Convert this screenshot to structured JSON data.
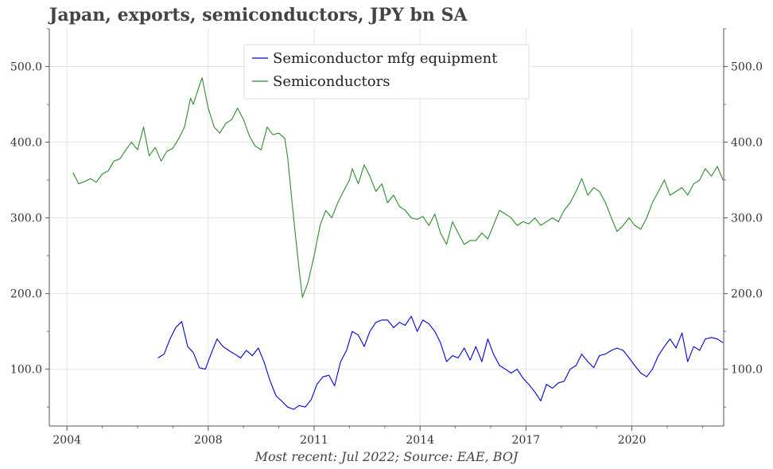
{
  "title": "Japan, exports, semiconductors, JPY bn SA",
  "footer": "Most recent: Jul 2022; Source: EAE, BOJ",
  "chart_data": {
    "type": "line",
    "title": "Japan, exports, semiconductors, JPY bn SA",
    "xlabel": "",
    "ylabel": "",
    "xlim": [
      2003.5,
      2022.6
    ],
    "ylim": [
      25,
      550
    ],
    "grid": true,
    "legend_position": "top-center",
    "x_ticks": [
      2004,
      2008,
      2011,
      2014,
      2017,
      2020
    ],
    "x_tick_labels": [
      "2004",
      "2008",
      "2011",
      "2014",
      "2017",
      "2020"
    ],
    "y_ticks": [
      100,
      200,
      300,
      400,
      500
    ],
    "y_tick_labels": [
      "100.0",
      "200.0",
      "300.0",
      "400.0",
      "500.0"
    ],
    "series": [
      {
        "name": "Semiconductor mfg equipment",
        "color": "#0000dd",
        "points": [
          [
            2006.58,
            115
          ],
          [
            2006.75,
            120
          ],
          [
            2006.92,
            140
          ],
          [
            2007.08,
            155
          ],
          [
            2007.25,
            163
          ],
          [
            2007.42,
            130
          ],
          [
            2007.58,
            122
          ],
          [
            2007.75,
            102
          ],
          [
            2007.92,
            100
          ],
          [
            2008.08,
            120
          ],
          [
            2008.25,
            140
          ],
          [
            2008.42,
            130
          ],
          [
            2008.58,
            125
          ],
          [
            2008.75,
            120
          ],
          [
            2008.92,
            115
          ],
          [
            2009.08,
            125
          ],
          [
            2009.25,
            118
          ],
          [
            2009.42,
            128
          ],
          [
            2009.58,
            110
          ],
          [
            2009.75,
            85
          ],
          [
            2009.92,
            65
          ],
          [
            2010.08,
            58
          ],
          [
            2010.25,
            50
          ],
          [
            2010.42,
            47
          ],
          [
            2010.58,
            52
          ],
          [
            2010.75,
            50
          ],
          [
            2010.92,
            60
          ],
          [
            2011.08,
            80
          ],
          [
            2011.25,
            90
          ],
          [
            2011.42,
            92
          ],
          [
            2011.58,
            78
          ],
          [
            2011.75,
            110
          ],
          [
            2011.92,
            125
          ],
          [
            2012.08,
            150
          ],
          [
            2012.25,
            145
          ],
          [
            2012.42,
            130
          ],
          [
            2012.58,
            150
          ],
          [
            2012.75,
            162
          ],
          [
            2012.92,
            165
          ],
          [
            2013.08,
            165
          ],
          [
            2013.25,
            155
          ],
          [
            2013.42,
            162
          ],
          [
            2013.58,
            158
          ],
          [
            2013.75,
            170
          ],
          [
            2013.92,
            150
          ],
          [
            2014.08,
            165
          ],
          [
            2014.25,
            160
          ],
          [
            2014.42,
            150
          ],
          [
            2014.58,
            135
          ],
          [
            2014.75,
            110
          ],
          [
            2014.92,
            118
          ],
          [
            2015.08,
            115
          ],
          [
            2015.25,
            128
          ],
          [
            2015.42,
            112
          ],
          [
            2015.58,
            130
          ],
          [
            2015.75,
            110
          ],
          [
            2015.92,
            140
          ],
          [
            2016.08,
            120
          ],
          [
            2016.25,
            105
          ],
          [
            2016.42,
            100
          ],
          [
            2016.58,
            95
          ],
          [
            2016.75,
            100
          ],
          [
            2016.92,
            88
          ],
          [
            2017.08,
            80
          ],
          [
            2017.25,
            70
          ],
          [
            2017.42,
            58
          ],
          [
            2017.58,
            80
          ],
          [
            2017.75,
            75
          ],
          [
            2017.92,
            82
          ],
          [
            2018.08,
            84
          ],
          [
            2018.25,
            100
          ],
          [
            2018.42,
            105
          ],
          [
            2018.58,
            120
          ],
          [
            2018.75,
            110
          ],
          [
            2018.92,
            102
          ],
          [
            2019.08,
            118
          ],
          [
            2019.25,
            120
          ],
          [
            2019.42,
            125
          ],
          [
            2019.58,
            128
          ],
          [
            2019.75,
            125
          ],
          [
            2019.92,
            115
          ],
          [
            2020.08,
            105
          ],
          [
            2020.25,
            95
          ],
          [
            2020.42,
            90
          ],
          [
            2020.58,
            100
          ],
          [
            2020.75,
            118
          ],
          [
            2020.92,
            130
          ],
          [
            2021.08,
            140
          ],
          [
            2021.25,
            128
          ],
          [
            2021.42,
            148
          ],
          [
            2021.58,
            110
          ],
          [
            2021.75,
            130
          ],
          [
            2021.92,
            125
          ],
          [
            2022.08,
            140
          ],
          [
            2022.25,
            142
          ],
          [
            2022.42,
            140
          ],
          [
            2022.58,
            135
          ]
        ]
      },
      {
        "name": "Semiconductors",
        "color": "#2e8b2e",
        "points": [
          [
            2004.17,
            360
          ],
          [
            2004.33,
            345
          ],
          [
            2004.5,
            348
          ],
          [
            2004.67,
            352
          ],
          [
            2004.83,
            347
          ],
          [
            2005.0,
            358
          ],
          [
            2005.17,
            362
          ],
          [
            2005.33,
            375
          ],
          [
            2005.5,
            378
          ],
          [
            2005.67,
            390
          ],
          [
            2005.83,
            400
          ],
          [
            2006.0,
            390
          ],
          [
            2006.17,
            420
          ],
          [
            2006.33,
            382
          ],
          [
            2006.5,
            393
          ],
          [
            2006.67,
            375
          ],
          [
            2006.83,
            388
          ],
          [
            2007.0,
            392
          ],
          [
            2007.17,
            405
          ],
          [
            2007.33,
            420
          ],
          [
            2007.5,
            458
          ],
          [
            2007.58,
            450
          ],
          [
            2007.75,
            475
          ],
          [
            2007.83,
            485
          ],
          [
            2008.0,
            445
          ],
          [
            2008.17,
            420
          ],
          [
            2008.33,
            412
          ],
          [
            2008.5,
            425
          ],
          [
            2008.67,
            430
          ],
          [
            2008.83,
            445
          ],
          [
            2009.0,
            430
          ],
          [
            2009.17,
            408
          ],
          [
            2009.33,
            395
          ],
          [
            2009.5,
            390
          ],
          [
            2009.67,
            420
          ],
          [
            2009.83,
            410
          ],
          [
            2010.0,
            412
          ],
          [
            2010.17,
            405
          ],
          [
            2010.25,
            380
          ],
          [
            2010.42,
            300
          ],
          [
            2010.58,
            230
          ],
          [
            2010.67,
            195
          ],
          [
            2010.83,
            215
          ],
          [
            2011.0,
            250
          ],
          [
            2011.17,
            290
          ],
          [
            2011.33,
            310
          ],
          [
            2011.5,
            300
          ],
          [
            2011.67,
            320
          ],
          [
            2011.83,
            335
          ],
          [
            2012.0,
            350
          ],
          [
            2012.08,
            365
          ],
          [
            2012.25,
            345
          ],
          [
            2012.42,
            370
          ],
          [
            2012.58,
            355
          ],
          [
            2012.75,
            335
          ],
          [
            2012.92,
            345
          ],
          [
            2013.08,
            320
          ],
          [
            2013.25,
            330
          ],
          [
            2013.42,
            315
          ],
          [
            2013.58,
            310
          ],
          [
            2013.75,
            300
          ],
          [
            2013.92,
            298
          ],
          [
            2014.08,
            302
          ],
          [
            2014.25,
            290
          ],
          [
            2014.42,
            305
          ],
          [
            2014.58,
            280
          ],
          [
            2014.75,
            265
          ],
          [
            2014.92,
            295
          ],
          [
            2015.08,
            280
          ],
          [
            2015.25,
            265
          ],
          [
            2015.42,
            270
          ],
          [
            2015.58,
            270
          ],
          [
            2015.75,
            280
          ],
          [
            2015.92,
            272
          ],
          [
            2016.08,
            290
          ],
          [
            2016.25,
            310
          ],
          [
            2016.42,
            305
          ],
          [
            2016.58,
            300
          ],
          [
            2016.75,
            290
          ],
          [
            2016.92,
            295
          ],
          [
            2017.08,
            292
          ],
          [
            2017.25,
            300
          ],
          [
            2017.42,
            290
          ],
          [
            2017.58,
            295
          ],
          [
            2017.75,
            300
          ],
          [
            2017.92,
            295
          ],
          [
            2018.08,
            310
          ],
          [
            2018.25,
            320
          ],
          [
            2018.42,
            335
          ],
          [
            2018.58,
            352
          ],
          [
            2018.75,
            330
          ],
          [
            2018.92,
            340
          ],
          [
            2019.08,
            335
          ],
          [
            2019.25,
            320
          ],
          [
            2019.42,
            300
          ],
          [
            2019.58,
            282
          ],
          [
            2019.75,
            290
          ],
          [
            2019.92,
            300
          ],
          [
            2020.08,
            290
          ],
          [
            2020.25,
            285
          ],
          [
            2020.42,
            300
          ],
          [
            2020.58,
            320
          ],
          [
            2020.75,
            335
          ],
          [
            2020.92,
            350
          ],
          [
            2021.08,
            330
          ],
          [
            2021.25,
            335
          ],
          [
            2021.42,
            340
          ],
          [
            2021.58,
            330
          ],
          [
            2021.75,
            345
          ],
          [
            2021.92,
            350
          ],
          [
            2022.08,
            365
          ],
          [
            2022.25,
            355
          ],
          [
            2022.42,
            368
          ],
          [
            2022.58,
            350
          ]
        ]
      }
    ]
  }
}
